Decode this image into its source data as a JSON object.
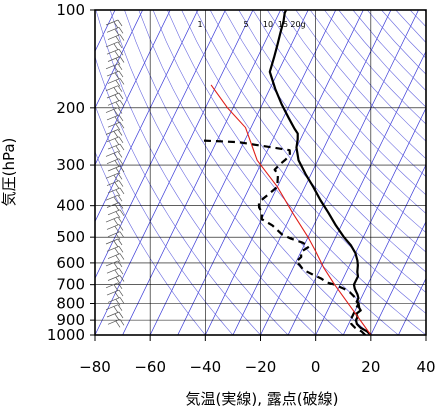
{
  "chart_data": {
    "type": "line",
    "title": "",
    "xlabel": "気温(実線), 露点(破線)",
    "ylabel": "気圧(hPa)",
    "xlim": [
      -80,
      40
    ],
    "ylim": [
      1000,
      100
    ],
    "y_scale": "log",
    "grid": true,
    "x_ticks": [
      -80,
      -60,
      -40,
      -20,
      0,
      20,
      40
    ],
    "x_tick_labels": [
      "−80",
      "−60",
      "−40",
      "−20",
      "0",
      "20",
      "40"
    ],
    "y_ticks": [
      100,
      200,
      300,
      400,
      500,
      600,
      700,
      800,
      900,
      1000
    ],
    "y_tick_labels": [
      "100",
      "200",
      "300",
      "400",
      "500",
      "600",
      "700",
      "800",
      "900",
      "1000"
    ],
    "mixing_ratio_labels": [
      "1",
      "5",
      "10",
      "15",
      "20g"
    ],
    "series": [
      {
        "role": "temperature",
        "style": "solid",
        "color": "#000000",
        "points": [
          [
            20,
            1000
          ],
          [
            18,
            975
          ],
          [
            15,
            950
          ],
          [
            13,
            925
          ],
          [
            12,
            900
          ],
          [
            12,
            880
          ],
          [
            11,
            860
          ],
          [
            12,
            840
          ],
          [
            11,
            825
          ],
          [
            10,
            800
          ],
          [
            9,
            790
          ],
          [
            9,
            770
          ],
          [
            8,
            750
          ],
          [
            7,
            735
          ],
          [
            6,
            720
          ],
          [
            5,
            700
          ],
          [
            5,
            680
          ],
          [
            5,
            660
          ],
          [
            4,
            640
          ],
          [
            3,
            610
          ],
          [
            2,
            590
          ],
          [
            0,
            560
          ],
          [
            -3,
            530
          ],
          [
            -7,
            500
          ],
          [
            -12,
            460
          ],
          [
            -17,
            420
          ],
          [
            -22,
            385
          ],
          [
            -27,
            350
          ],
          [
            -32,
            320
          ],
          [
            -37,
            290
          ],
          [
            -40,
            265
          ],
          [
            -41,
            250
          ],
          [
            -42,
            240
          ],
          [
            -44,
            232
          ],
          [
            -48,
            215
          ],
          [
            -53,
            195
          ],
          [
            -58,
            175
          ],
          [
            -63,
            155
          ],
          [
            -64,
            140
          ],
          [
            -65,
            128
          ],
          [
            -66,
            118
          ],
          [
            -67,
            108
          ],
          [
            -68,
            102
          ],
          [
            -68,
            100
          ]
        ]
      },
      {
        "role": "dewpoint",
        "style": "dashed",
        "color": "#000000",
        "points": [
          [
            18,
            1000
          ],
          [
            16,
            975
          ],
          [
            13,
            950
          ],
          [
            11,
            925
          ],
          [
            10,
            900
          ],
          [
            10,
            860
          ],
          [
            10,
            800
          ],
          [
            8,
            770
          ],
          [
            5,
            740
          ],
          [
            2,
            720
          ],
          [
            -2,
            700
          ],
          [
            -5,
            690
          ],
          [
            -8,
            670
          ],
          [
            -12,
            650
          ],
          [
            -16,
            630
          ],
          [
            -18,
            610
          ],
          [
            -20,
            595
          ],
          [
            -19,
            575
          ],
          [
            -20,
            555
          ],
          [
            -18,
            535
          ],
          [
            -21,
            520
          ],
          [
            -26,
            505
          ],
          [
            -30,
            490
          ],
          [
            -35,
            460
          ],
          [
            -40,
            440
          ],
          [
            -41,
            420
          ],
          [
            -43,
            405
          ],
          [
            -44,
            390
          ],
          [
            -42,
            370
          ],
          [
            -40,
            350
          ],
          [
            -41,
            335
          ],
          [
            -42,
            320
          ],
          [
            -44,
            310
          ],
          [
            -43,
            298
          ],
          [
            -42,
            290
          ],
          [
            -41,
            280
          ],
          [
            -42,
            270
          ],
          [
            -62,
            255
          ],
          [
            -76,
            252
          ]
        ]
      },
      {
        "role": "reference-curve",
        "style": "solid",
        "color": "#e0201b",
        "points": [
          [
            20,
            1000
          ],
          [
            10,
            850
          ],
          [
            -2,
            700
          ],
          [
            -9,
            620
          ],
          [
            -15,
            550
          ],
          [
            -20,
            500
          ],
          [
            -30,
            420
          ],
          [
            -40,
            350
          ],
          [
            -52,
            290
          ],
          [
            -62,
            230
          ],
          [
            -72,
            200
          ],
          [
            -82,
            170
          ]
        ]
      }
    ],
    "background_lines": {
      "isotherm_color": "#3b3bd8",
      "adiabat_color": "#6a6ae0"
    }
  }
}
